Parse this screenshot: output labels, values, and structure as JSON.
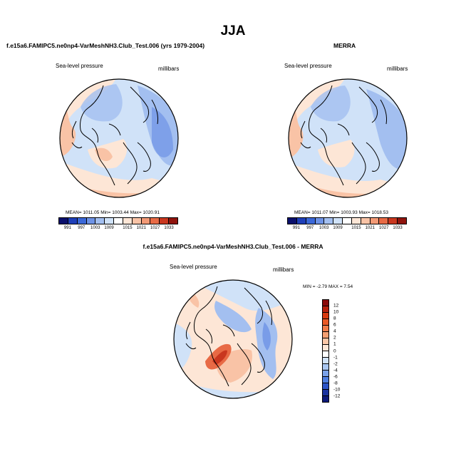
{
  "title": "JJA",
  "panel1": {
    "title": "f.e15a6.FAMIPC5.ne0np4-VarMeshNH3.Club_Test.006 (yrs 1979-2004)",
    "left_label": "Sea-level pressure",
    "right_label": "millibars",
    "stats": "MEAN= 1011.05  Min= 1003.44  Max= 1020.91"
  },
  "panel2": {
    "title": "MERRA",
    "left_label": "Sea-level pressure",
    "right_label": "millibars",
    "stats": "MEAN= 1011.07  Min= 1003.93  Max= 1018.53"
  },
  "panel3": {
    "title": "f.e15a6.FAMIPC5.ne0np4-VarMeshNH3.Club_Test.006 - MERRA",
    "left_label": "Sea-level pressure",
    "right_label": "millibars",
    "stats": "MIN = -2.79 MAX = 7.54"
  },
  "colorbar_abs": {
    "colors": [
      "#0a0f6b",
      "#1f3fb8",
      "#3b68d8",
      "#6e93e6",
      "#a3bff0",
      "#d0e2f8",
      "#ffffff",
      "#fde6d6",
      "#f9c3a6",
      "#f39a76",
      "#e86a45",
      "#c9371f",
      "#8f140d"
    ],
    "ticks": [
      "991",
      "997",
      "1003",
      "1009",
      "1015",
      "1021",
      "1027",
      "1033"
    ]
  },
  "colorbar_diff": {
    "colors": [
      "#8b0a0a",
      "#b8200c",
      "#d93b10",
      "#ea5a26",
      "#f17d4a",
      "#f6a072",
      "#fac7a7",
      "#fde6d6",
      "#ffffff",
      "#d0e2f8",
      "#a8c6f1",
      "#7ba2e9",
      "#4f7fe0",
      "#2d55c7",
      "#1a33a0",
      "#0d1a7a",
      "#05095a"
    ],
    "ticks": [
      "12",
      "10",
      "8",
      "6",
      "4",
      "2",
      "1",
      "0",
      "-1",
      "-2",
      "-4",
      "-6",
      "-8",
      "-10",
      "-12"
    ]
  }
}
